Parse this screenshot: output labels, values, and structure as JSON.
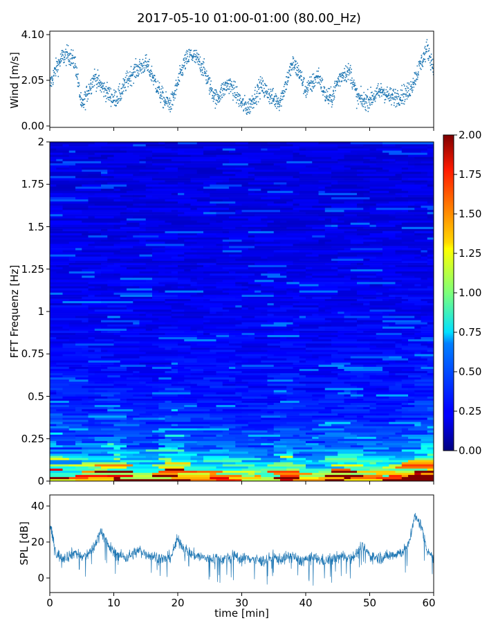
{
  "chart_data": [
    {
      "type": "scatter",
      "title": "2017-05-10 01:00-01:00 (80.00_Hz)",
      "ylabel": "Wind [m/s]",
      "xlim": [
        0,
        60
      ],
      "ylim": [
        -0.05,
        4.15
      ],
      "yticks": [
        "0.00",
        "2.05",
        "4.10"
      ],
      "marker_color": "#1f77b4",
      "wind_profile": {
        "x": [
          0,
          1,
          2,
          3,
          4,
          5,
          6,
          7,
          8,
          9,
          10,
          11,
          12,
          13,
          14,
          15,
          16,
          17,
          18,
          19,
          20,
          21,
          22,
          23,
          24,
          25,
          26,
          27,
          28,
          29,
          30,
          31,
          32,
          33,
          34,
          35,
          36,
          37,
          38,
          39,
          40,
          41,
          42,
          43,
          44,
          45,
          46,
          47,
          48,
          49,
          50,
          51,
          52,
          53,
          54,
          55,
          56,
          57,
          58,
          59,
          60
        ],
        "y": [
          1.8,
          2.6,
          3.1,
          3.2,
          2.8,
          0.8,
          1.6,
          2.2,
          1.8,
          1.5,
          1.2,
          1.4,
          2.0,
          2.4,
          2.6,
          2.8,
          2.3,
          1.6,
          1.1,
          1.0,
          1.9,
          2.8,
          3.2,
          3.0,
          2.6,
          1.8,
          1.2,
          1.6,
          1.9,
          1.5,
          1.0,
          0.8,
          1.3,
          1.8,
          1.5,
          1.2,
          1.1,
          2.0,
          2.8,
          2.4,
          1.6,
          1.9,
          2.3,
          1.4,
          1.2,
          2.0,
          2.4,
          2.4,
          1.3,
          1.1,
          1.2,
          1.4,
          1.6,
          1.3,
          1.3,
          1.4,
          1.5,
          2.1,
          2.8,
          3.5,
          2.6
        ],
        "spread": 0.42
      }
    },
    {
      "type": "heatmap",
      "ylabel": "FFT Frequenz [Hz]",
      "xlim": [
        0,
        60
      ],
      "ylim": [
        0,
        2
      ],
      "yticks": [
        "0",
        "0.25",
        "0.5",
        "0.75",
        "1",
        "1.25",
        "1.5",
        "1.75",
        "2"
      ],
      "colormap": "jet",
      "colorbar": {
        "range": [
          0.0,
          2.0
        ],
        "ticks": [
          "0.00",
          "0.25",
          "0.50",
          "0.75",
          "1.00",
          "1.25",
          "1.50",
          "1.75",
          "2.00"
        ]
      }
    },
    {
      "type": "line",
      "ylabel": "SPL [dB]",
      "xlabel": "time [min]",
      "xlim": [
        0,
        60
      ],
      "ylim": [
        -7,
        46
      ],
      "xticks": [
        "0",
        "10",
        "20",
        "30",
        "40",
        "50",
        "60"
      ],
      "yticks": [
        "0",
        "20",
        "40"
      ],
      "line_color": "#1f77b4",
      "spl_profile": {
        "x": [
          0,
          1,
          2,
          3,
          4,
          5,
          6,
          7,
          8,
          9,
          10,
          11,
          12,
          13,
          14,
          15,
          16,
          17,
          18,
          19,
          20,
          21,
          22,
          23,
          24,
          25,
          26,
          27,
          28,
          29,
          30,
          31,
          32,
          33,
          34,
          35,
          36,
          37,
          38,
          39,
          40,
          41,
          42,
          43,
          44,
          45,
          46,
          47,
          48,
          49,
          50,
          51,
          52,
          53,
          54,
          55,
          56,
          57,
          58,
          59,
          60
        ],
        "y": [
          30,
          14,
          12,
          13,
          15,
          12,
          14,
          18,
          27,
          19,
          15,
          13,
          12,
          14,
          16,
          14,
          13,
          12,
          11,
          13,
          22,
          17,
          14,
          13,
          12,
          11,
          12,
          11,
          12,
          13,
          11,
          12,
          11,
          10,
          11,
          12,
          11,
          12,
          13,
          10,
          11,
          12,
          11,
          10,
          11,
          12,
          13,
          12,
          14,
          18,
          13,
          12,
          12,
          13,
          14,
          15,
          18,
          34,
          30,
          16,
          12
        ]
      }
    }
  ]
}
